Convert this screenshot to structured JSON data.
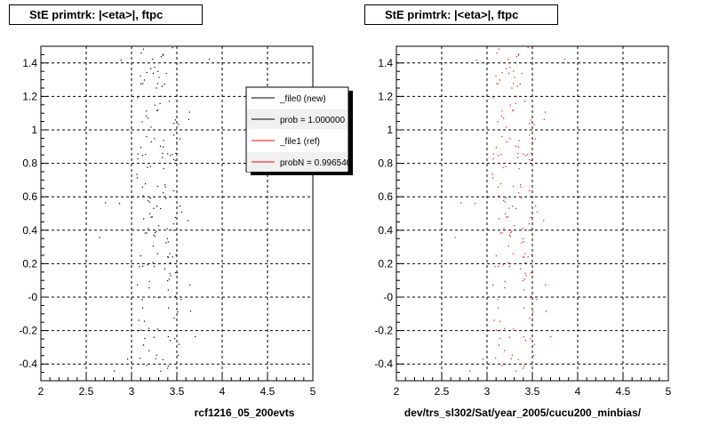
{
  "chart_data": [
    {
      "type": "scatter",
      "title": "StE primtrk: |<eta>|, ftpc",
      "xlabel": "rcf1216_05_200evts",
      "xlim": [
        2,
        5
      ],
      "ylim": [
        -0.5,
        1.5
      ],
      "x_ticks": [
        "2",
        "2.5",
        "3",
        "3.5",
        "4",
        "4.5",
        "5"
      ],
      "y_ticks": [
        "-0.4",
        "-0.2",
        "-0",
        "0.2",
        "0.4",
        "0.6",
        "0.8",
        "1",
        "1.2",
        "1.4"
      ],
      "grid": true,
      "marker_color": "#000000",
      "legend": {
        "placement": "top-right",
        "entries": [
          {
            "label": "_file0 (new)",
            "color": "#000000"
          },
          {
            "label": "prob = 1.000000",
            "color": "#000000"
          },
          {
            "label": "_file1 (ref)",
            "color": "#ff0000"
          },
          {
            "label": "probN = 0.996540",
            "color": "#ff0000"
          }
        ]
      }
    },
    {
      "type": "scatter",
      "title": "StE primtrk: |<eta>|, ftpc",
      "xlabel": "dev/trs_sl302/Sat/year_2005/cucu200_minbias/",
      "xlim": [
        2,
        5
      ],
      "ylim": [
        -0.5,
        1.5
      ],
      "x_ticks": [
        "2",
        "2.5",
        "3",
        "3.5",
        "4",
        "4.5",
        "5"
      ],
      "y_ticks": [
        "-0.4",
        "-0.2",
        "-0",
        "0.2",
        "0.4",
        "0.6",
        "0.8",
        "1",
        "1.2",
        "1.4"
      ],
      "grid": true,
      "marker_color": "#ff0000"
    }
  ]
}
